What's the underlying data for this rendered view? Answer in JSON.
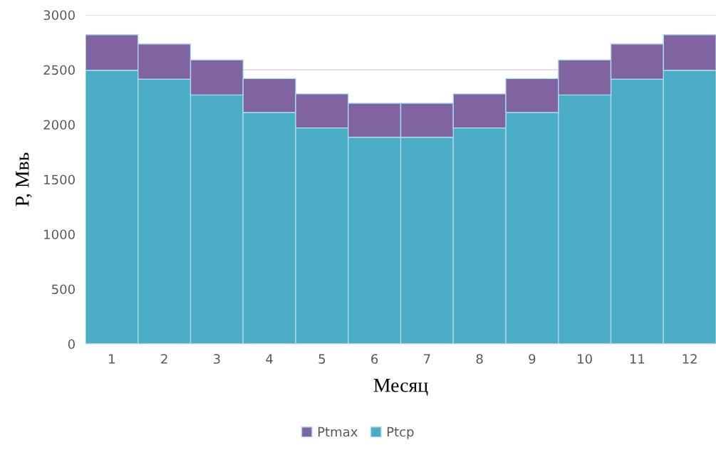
{
  "chart_data": {
    "type": "bar",
    "stacked": true,
    "xlabel": "Месяц",
    "ylabel": "P, Мвь",
    "categories": [
      "1",
      "2",
      "3",
      "4",
      "5",
      "6",
      "7",
      "8",
      "9",
      "10",
      "11",
      "12"
    ],
    "series": [
      {
        "name": "Ptср",
        "color": "#4bacc6",
        "values": [
          2495,
          2415,
          2270,
          2110,
          1970,
          1885,
          1885,
          1970,
          2110,
          2270,
          2415,
          2495
        ]
      },
      {
        "name": "Ptmax",
        "color": "#8064a2",
        "values": [
          325,
          320,
          320,
          310,
          310,
          310,
          310,
          310,
          310,
          320,
          320,
          325
        ]
      }
    ],
    "ylim": [
      0,
      3000
    ],
    "yticks": [
      0,
      500,
      1000,
      1500,
      2000,
      2500,
      3000
    ],
    "grid": "y",
    "legend": "bottom"
  }
}
